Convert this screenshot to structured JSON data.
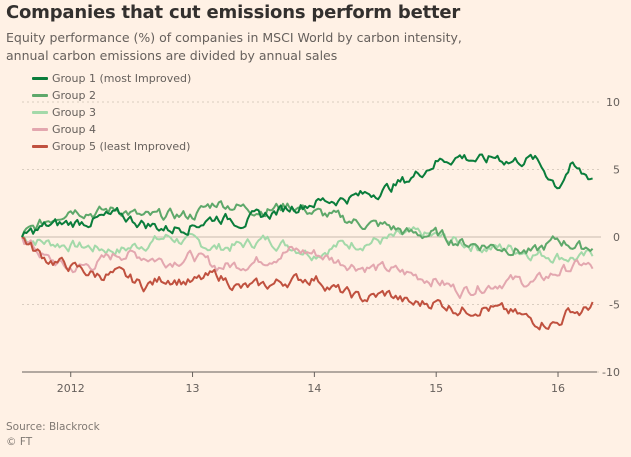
{
  "header": {
    "title": "Companies that cut emissions perform better",
    "subtitle_line1": "Equity performance (%) of companies in MSCI World by carbon intensity,",
    "subtitle_line2": "annual carbon emissions are divided by annual sales"
  },
  "footer": {
    "source": "Source: Blackrock",
    "credit": "© FT"
  },
  "colors": {
    "background": "#fff1e5",
    "grid": "#d9cdc0",
    "axis_text": "#66605c"
  },
  "chart_data": {
    "type": "line",
    "title": "Companies that cut emissions perform better",
    "ylabel": "",
    "xlabel": "",
    "xlim": [
      2011.6,
      2016.32
    ],
    "ylim": [
      -10,
      10
    ],
    "yticks": [
      10,
      5,
      0,
      -5,
      -10
    ],
    "xticks": [
      {
        "value": 2012,
        "label": "2012"
      },
      {
        "value": 2013,
        "label": "13"
      },
      {
        "value": 2014,
        "label": "14"
      },
      {
        "value": 2015,
        "label": "15"
      },
      {
        "value": 2016,
        "label": "16"
      }
    ],
    "grid": true,
    "legend_position": "top-left",
    "series": [
      {
        "name": "Group 1 (most Improved)",
        "color": "#0a7d3b",
        "x": [
          2011.6,
          2011.8,
          2012.0,
          2012.2,
          2012.4,
          2012.6,
          2012.8,
          2013.0,
          2013.2,
          2013.4,
          2013.6,
          2013.8,
          2014.0,
          2014.2,
          2014.4,
          2014.6,
          2014.8,
          2015.0,
          2015.2,
          2015.4,
          2015.5,
          2015.55,
          2015.6,
          2015.8,
          2016.0,
          2016.1,
          2016.2,
          2016.3
        ],
        "values": [
          0.0,
          0.8,
          1.0,
          1.3,
          1.6,
          1.0,
          0.6,
          0.9,
          1.5,
          1.2,
          1.6,
          2.2,
          2.6,
          2.8,
          3.1,
          3.6,
          4.4,
          5.6,
          6.0,
          5.6,
          6.0,
          5.8,
          5.6,
          5.8,
          3.8,
          5.2,
          4.6,
          4.4
        ]
      },
      {
        "name": "Group 2",
        "color": "#5ea86a",
        "x": [
          2011.6,
          2011.8,
          2012.0,
          2012.2,
          2012.4,
          2012.6,
          2012.8,
          2013.0,
          2013.2,
          2013.4,
          2013.6,
          2013.8,
          2014.0,
          2014.2,
          2014.4,
          2014.6,
          2014.8,
          2015.0,
          2015.2,
          2015.4,
          2015.6,
          2015.8,
          2016.0,
          2016.2,
          2016.3
        ],
        "values": [
          0.0,
          1.2,
          2.2,
          1.8,
          2.1,
          1.4,
          1.6,
          1.6,
          2.6,
          2.2,
          2.0,
          2.4,
          1.8,
          1.4,
          1.0,
          0.8,
          0.2,
          0.2,
          -0.4,
          -0.6,
          -0.8,
          -1.2,
          -0.2,
          -0.8,
          -0.6
        ]
      },
      {
        "name": "Group 3",
        "color": "#a3d9a9",
        "x": [
          2011.6,
          2011.8,
          2012.0,
          2012.2,
          2012.4,
          2012.6,
          2012.8,
          2013.0,
          2013.2,
          2013.4,
          2013.6,
          2013.8,
          2014.0,
          2014.2,
          2014.4,
          2014.6,
          2014.8,
          2015.0,
          2015.2,
          2015.4,
          2015.6,
          2015.8,
          2016.0,
          2016.2,
          2016.3
        ],
        "values": [
          0.0,
          -0.4,
          -0.6,
          -0.8,
          -1.0,
          -0.5,
          0.0,
          -0.4,
          -0.8,
          -0.6,
          -0.2,
          -0.6,
          -1.2,
          -0.6,
          -0.4,
          -0.2,
          0.2,
          0.0,
          -0.4,
          -0.8,
          -0.8,
          -1.2,
          -1.4,
          -1.6,
          -1.2
        ]
      },
      {
        "name": "Group 4",
        "color": "#e3a7af",
        "x": [
          2011.6,
          2011.8,
          2012.0,
          2012.2,
          2012.4,
          2012.6,
          2012.8,
          2013.0,
          2013.2,
          2013.4,
          2013.6,
          2013.8,
          2014.0,
          2014.2,
          2014.4,
          2014.6,
          2014.8,
          2015.0,
          2015.2,
          2015.4,
          2015.6,
          2015.8,
          2016.0,
          2016.2,
          2016.3
        ],
        "values": [
          0.0,
          -1.6,
          -2.4,
          -2.0,
          -1.2,
          -1.4,
          -1.8,
          -1.4,
          -2.2,
          -2.0,
          -1.6,
          -1.0,
          -1.2,
          -1.8,
          -2.2,
          -2.4,
          -2.8,
          -3.2,
          -4.0,
          -3.6,
          -3.2,
          -3.4,
          -2.6,
          -2.0,
          -2.4
        ]
      },
      {
        "name": "Group 5 (least Improved)",
        "color": "#c0513f",
        "x": [
          2011.6,
          2011.7,
          2011.8,
          2012.0,
          2012.2,
          2012.4,
          2012.6,
          2012.8,
          2013.0,
          2013.2,
          2013.4,
          2013.6,
          2013.8,
          2014.0,
          2014.2,
          2014.4,
          2014.6,
          2014.8,
          2015.0,
          2015.2,
          2015.4,
          2015.6,
          2015.8,
          2016.0,
          2016.1,
          2016.2,
          2016.3
        ],
        "values": [
          0.0,
          -1.0,
          -1.6,
          -2.2,
          -2.8,
          -2.8,
          -3.6,
          -3.0,
          -3.4,
          -2.8,
          -3.8,
          -3.6,
          -3.2,
          -3.0,
          -4.0,
          -4.6,
          -4.2,
          -5.0,
          -4.8,
          -5.4,
          -5.2,
          -5.6,
          -6.2,
          -6.4,
          -5.4,
          -5.6,
          -4.8
        ]
      }
    ]
  }
}
